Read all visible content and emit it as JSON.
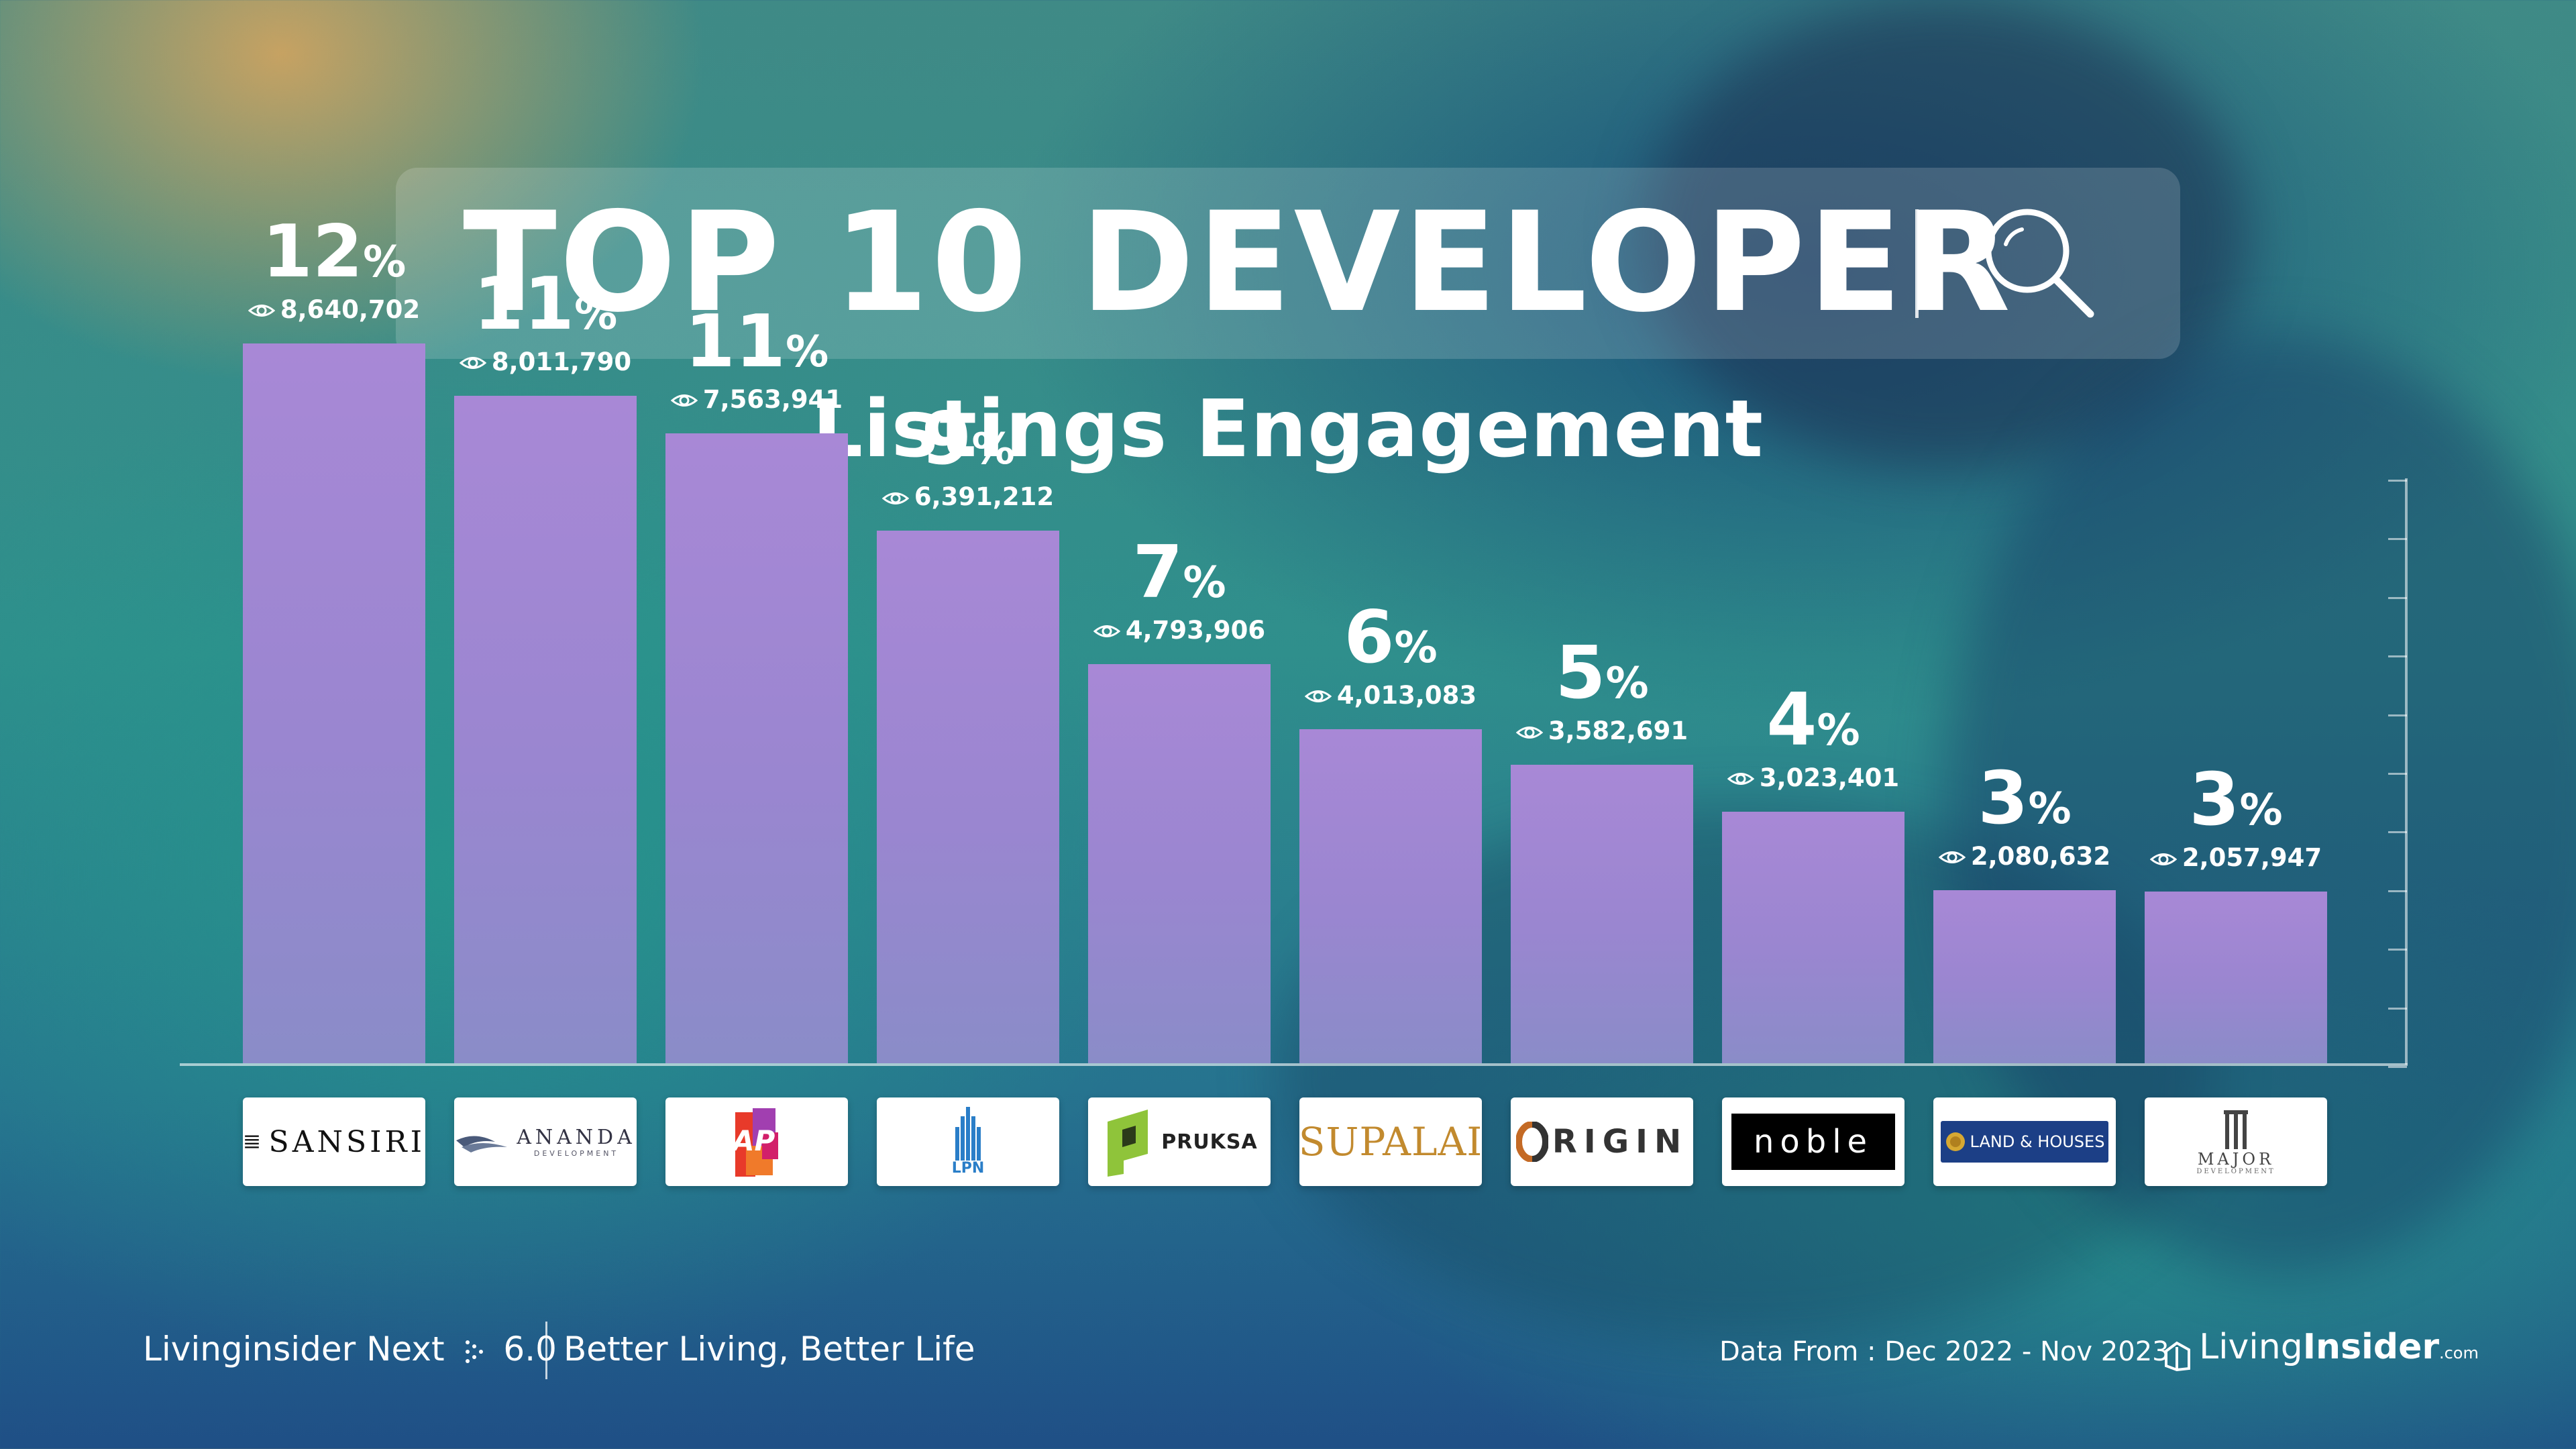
{
  "title": "TOP 10 DEVELOPER",
  "subtitle": "Listings Engagement",
  "chart_data": {
    "type": "bar",
    "title": "TOP 10 DEVELOPER",
    "subtitle": "Listings Engagement",
    "categories": [
      "SANSIRI",
      "ANANDA DEVELOPMENT",
      "AP",
      "LPN",
      "PRUKSA",
      "SUPALAI",
      "ORIGIN",
      "noble",
      "LAND & HOUSES",
      "MAJOR DEVELOPMENT"
    ],
    "values": [
      8640702,
      8011790,
      7563941,
      6391212,
      4793906,
      4013083,
      3582691,
      3023401,
      2080632,
      2057947
    ],
    "value_labels": [
      "8,640,702",
      "8,011,790",
      "7,563,941",
      "6,391,212",
      "4,793,906",
      "4,013,083",
      "3,582,691",
      "3,023,401",
      "2,080,632",
      "2,057,947"
    ],
    "percentages": [
      "12",
      "11",
      "11",
      "9",
      "7",
      "6",
      "5",
      "4",
      "3",
      "3"
    ],
    "percent_symbol": "%",
    "ylim": [
      0,
      9300000
    ],
    "grid": false,
    "legend": "none"
  },
  "logos": {
    "sansiri": "SANSIRI",
    "ananda_main": "ANANDA",
    "ananda_sub": "DEVELOPMENT",
    "ap": "AP",
    "lpn": "LPN",
    "pruksa": "PRUKSA",
    "supalai": "SUPALAI",
    "origin": "RIGIN",
    "noble": "noble",
    "landhouses": "LAND & HOUSES",
    "major_main": "MAJOR",
    "major_sub": "DEVELOPMENT"
  },
  "footer": {
    "brand_prefix": "Livinginsider Next",
    "version": "6.0",
    "tagline": "Better Living, Better Life",
    "data_range": "Data From : Dec 2022 - Nov 2023",
    "brand_living": "Living",
    "brand_insider": "Insider",
    "brand_domain": ".com"
  },
  "colors": {
    "bar": "#a888d6",
    "title_box": "rgba(255,255,255,0.16)",
    "text": "#ffffff"
  }
}
